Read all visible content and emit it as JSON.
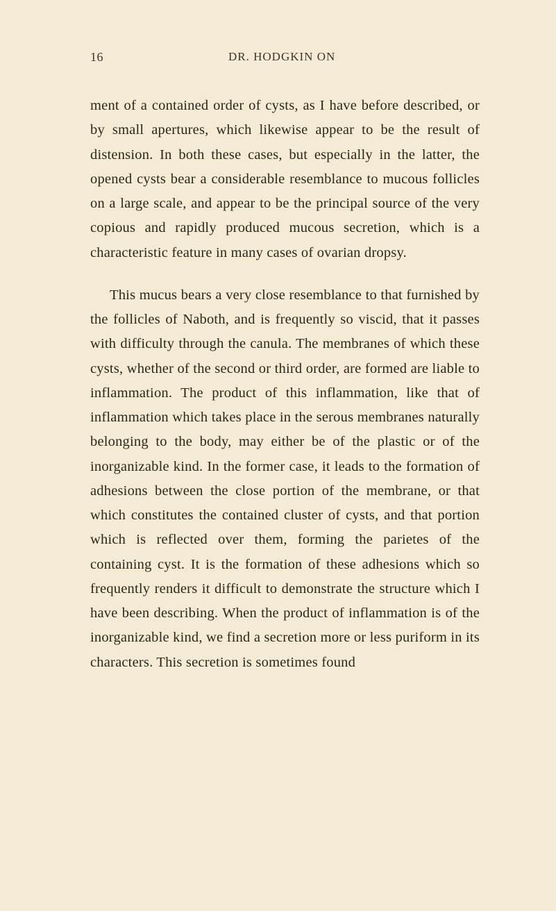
{
  "page": {
    "number": "16",
    "header": "DR. HODGKIN ON"
  },
  "paragraphs": {
    "p1": "ment of a contained order of cysts, as I have before described, or by small apertures, which likewise appear to be the result of distension. In both these cases, but especially in the latter, the opened cysts bear a considerable resemblance to mucous follicles on a large scale, and appear to be the principal source of the very copious and rapidly produced mucous secretion, which is a characteristic feature in many cases of ovarian dropsy.",
    "p2": "This mucus bears a very close resemblance to that furnished by the follicles of Naboth, and is frequently so viscid, that it passes with difficulty through the canula. The membranes of which these cysts, whether of the second or third order, are formed are liable to inflammation. The product of this inflammation, like that of inflammation which takes place in the serous membranes naturally belonging to the body, may either be of the plastic or of the inorganizable kind. In the former case, it leads to the formation of adhesions between the close portion of the membrane, or that which constitutes the contained cluster of cysts, and that portion which is reflected over them, forming the parietes of the containing cyst. It is the formation of these adhesions which so frequently renders it difficult to demonstrate the structure which I have been describing. When the product of inflammation is of the inorganizable kind, we find a secretion more or less puriform in its characters. This secretion is sometimes found"
  },
  "colors": {
    "background": "#f5ebd4",
    "text": "#2b2718",
    "header_text": "#3a3528"
  },
  "typography": {
    "body_fontsize": 20.5,
    "body_line_height": 1.72,
    "header_fontsize": 17,
    "page_number_fontsize": 18,
    "font_family": "Georgia, Times New Roman, serif"
  }
}
